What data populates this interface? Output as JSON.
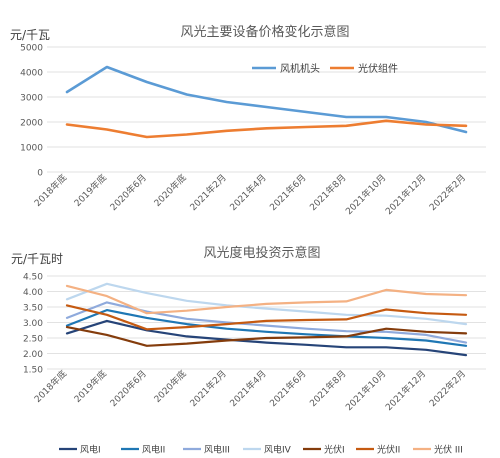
{
  "chart_data": [
    {
      "type": "line",
      "title": "风光主要设备价格变化示意图",
      "ylabel": "元/千瓦",
      "xlabel": "",
      "ylim": [
        0,
        5000
      ],
      "yticks": [
        "0",
        "1000",
        "2000",
        "3000",
        "4000",
        "5000"
      ],
      "categories": [
        "2018年底",
        "2019年底",
        "2020年6月",
        "2020年底",
        "2021年2月",
        "2021年4月",
        "2021年6月",
        "2021年8月",
        "2021年10月",
        "2021年12月",
        "2022年2月"
      ],
      "grid": true,
      "legend": "top-right",
      "series": [
        {
          "name": "风机机头",
          "color": "#5b9bd5",
          "values": [
            3200,
            4200,
            3600,
            3100,
            2800,
            2600,
            2400,
            2200,
            2200,
            2000,
            1600
          ]
        },
        {
          "name": "光伏组件",
          "color": "#ed7d31",
          "values": [
            1900,
            1700,
            1400,
            1500,
            1650,
            1750,
            1800,
            1850,
            2050,
            1900,
            1850
          ]
        }
      ]
    },
    {
      "type": "line",
      "title": "风光度电投资示意图",
      "ylabel": "元/千瓦时",
      "xlabel": "",
      "ylim": [
        1.5,
        4.5
      ],
      "yticks": [
        "1.50",
        "2.00",
        "2.50",
        "3.00",
        "3.50",
        "4.00",
        "4.50"
      ],
      "categories": [
        "2018年底",
        "2019年底",
        "2020年6月",
        "2020年底",
        "2021年2月",
        "2021年4月",
        "2021年6月",
        "2021年8月",
        "2021年10月",
        "2021年12月",
        "2022年2月"
      ],
      "grid": true,
      "legend": "bottom",
      "series": [
        {
          "name": "风电I",
          "color": "#264478",
          "values": [
            2.65,
            3.05,
            2.75,
            2.55,
            2.45,
            2.35,
            2.28,
            2.2,
            2.2,
            2.12,
            1.95
          ]
        },
        {
          "name": "风电II",
          "color": "#1f77b4",
          "values": [
            2.9,
            3.4,
            3.15,
            2.95,
            2.8,
            2.7,
            2.62,
            2.55,
            2.5,
            2.42,
            2.25
          ]
        },
        {
          "name": "风电III",
          "color": "#8faadc",
          "values": [
            3.15,
            3.65,
            3.35,
            3.12,
            3.0,
            2.9,
            2.8,
            2.72,
            2.7,
            2.6,
            2.35
          ]
        },
        {
          "name": "风电IV",
          "color": "#bdd7ee",
          "values": [
            3.75,
            4.25,
            3.95,
            3.7,
            3.55,
            3.45,
            3.35,
            3.25,
            3.22,
            3.12,
            2.95
          ]
        },
        {
          "name": "光伏I",
          "color": "#843c0c",
          "values": [
            2.85,
            2.6,
            2.25,
            2.32,
            2.42,
            2.5,
            2.52,
            2.55,
            2.8,
            2.7,
            2.65
          ]
        },
        {
          "name": "光伏II",
          "color": "#c55a11",
          "values": [
            3.55,
            3.25,
            2.78,
            2.85,
            2.95,
            3.05,
            3.08,
            3.1,
            3.42,
            3.3,
            3.25
          ]
        },
        {
          "name": "光伏 III",
          "color": "#f4b183",
          "values": [
            4.18,
            3.85,
            3.3,
            3.38,
            3.5,
            3.6,
            3.65,
            3.68,
            4.05,
            3.92,
            3.88
          ]
        }
      ]
    }
  ]
}
